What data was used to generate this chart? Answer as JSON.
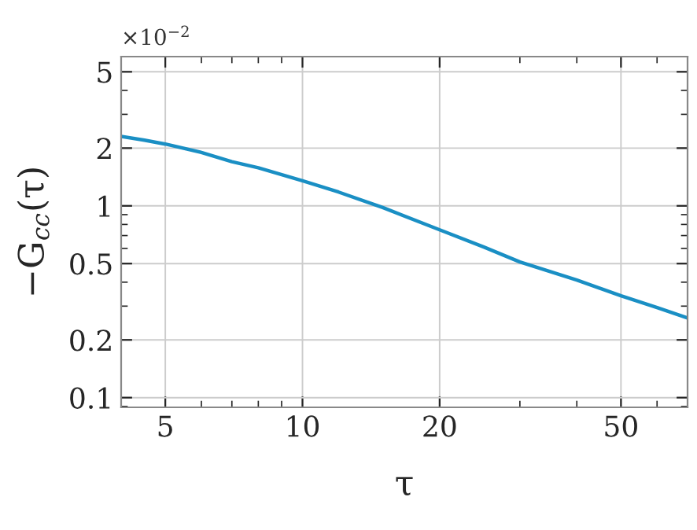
{
  "chart_data": {
    "type": "line",
    "xlabel": "τ",
    "ylabel": "−G$_{cc}$(τ)",
    "annotations": [
      "×10$^{−2}$"
    ],
    "x": [
      4,
      4.5,
      5,
      6,
      7,
      8,
      10,
      12,
      15,
      20,
      25,
      30,
      40,
      50,
      60,
      70
    ],
    "series": [
      {
        "color": "#1a8fc4",
        "values": [
          2.3,
          2.2,
          2.1,
          1.9,
          1.7,
          1.58,
          1.35,
          1.18,
          0.98,
          0.75,
          0.61,
          0.51,
          0.41,
          0.34,
          0.295,
          0.26
        ]
      }
    ],
    "log": "xy",
    "xlim": [
      4,
      70
    ],
    "ylim": [
      0.089,
      6
    ],
    "xticks": [
      5,
      10,
      20,
      50
    ],
    "yticks": [
      0.1,
      0.2,
      0.5,
      1,
      2,
      5
    ],
    "grid": true,
    "marker": "none",
    "line_style": "solid"
  }
}
